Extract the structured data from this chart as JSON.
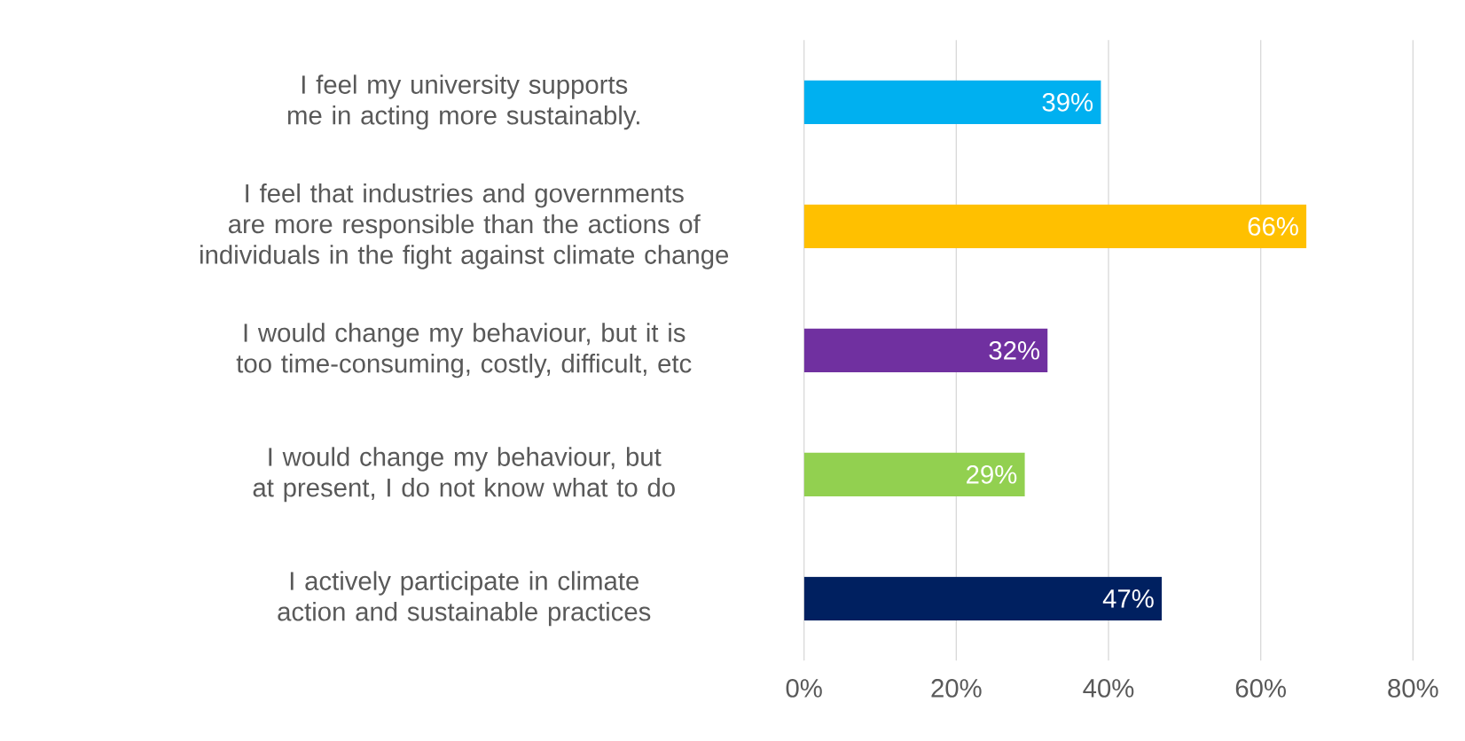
{
  "chart_data": {
    "type": "bar",
    "orientation": "horizontal",
    "categories": [
      "I feel my university supports me in acting more sustainably.",
      "I feel that industries and governments are more responsible than the actions of individuals in the fight against climate change",
      "I would change my behaviour, but it is too time-consuming, costly, difficult, etc",
      "I would change my behaviour, but at present, I do not know what to do",
      "I actively participate in climate action and sustainable practices"
    ],
    "values": [
      39,
      66,
      32,
      29,
      47
    ],
    "colors": [
      "#00b0f0",
      "#ffc000",
      "#7030a0",
      "#92d050",
      "#002060"
    ],
    "value_labels": [
      "39%",
      "66%",
      "32%",
      "29%",
      "47%"
    ],
    "xlim": [
      0,
      80
    ],
    "xticks": [
      {
        "value": 0,
        "label": "0%"
      },
      {
        "value": 20,
        "label": "20%"
      },
      {
        "value": 40,
        "label": "40%"
      },
      {
        "value": 60,
        "label": "60%"
      },
      {
        "value": 80,
        "label": "80%"
      }
    ],
    "grid": "x"
  }
}
